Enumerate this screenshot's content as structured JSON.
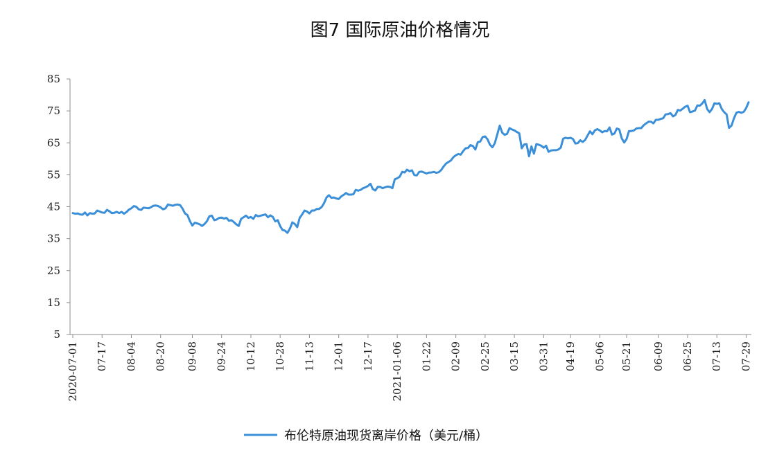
{
  "chart_data": {
    "type": "line",
    "title": "图7 国际原油价格情况",
    "ylim": [
      5,
      85
    ],
    "yticks": [
      85,
      75,
      65,
      55,
      45,
      35,
      25,
      15,
      5
    ],
    "grid": false,
    "legend_position": "bottom",
    "x_tick_labels": [
      "2020-07-01",
      "07-17",
      "08-04",
      "08-20",
      "09-08",
      "09-24",
      "10-12",
      "10-28",
      "11-13",
      "12-01",
      "12-17",
      "2021-01-06",
      "01-22",
      "02-09",
      "02-25",
      "03-15",
      "03-31",
      "04-19",
      "05-06",
      "05-21",
      "06-09",
      "06-25",
      "07-13",
      "07-29"
    ],
    "series": [
      {
        "name": "布伦特原油现货离岸价格（美元/桶）",
        "color": "#3a8fd8",
        "points": [
          [
            "2020-07-01",
            43.0
          ],
          [
            "2020-07-02",
            42.8
          ],
          [
            "2020-07-03",
            42.9
          ],
          [
            "2020-07-06",
            42.6
          ],
          [
            "2020-07-07",
            42.5
          ],
          [
            "2020-07-08",
            43.2
          ],
          [
            "2020-07-09",
            42.3
          ],
          [
            "2020-07-10",
            43.0
          ],
          [
            "2020-07-13",
            42.8
          ],
          [
            "2020-07-14",
            42.9
          ],
          [
            "2020-07-15",
            43.8
          ],
          [
            "2020-07-16",
            43.5
          ],
          [
            "2020-07-17",
            43.2
          ],
          [
            "2020-07-20",
            43.1
          ],
          [
            "2020-07-21",
            44.0
          ],
          [
            "2020-07-22",
            43.6
          ],
          [
            "2020-07-23",
            43.0
          ],
          [
            "2020-07-24",
            43.1
          ],
          [
            "2020-07-27",
            43.4
          ],
          [
            "2020-07-28",
            43.0
          ],
          [
            "2020-07-29",
            43.4
          ],
          [
            "2020-07-30",
            42.8
          ],
          [
            "2020-07-31",
            43.3
          ],
          [
            "2020-08-03",
            44.1
          ],
          [
            "2020-08-04",
            44.5
          ],
          [
            "2020-08-05",
            45.2
          ],
          [
            "2020-08-06",
            45.0
          ],
          [
            "2020-08-07",
            44.2
          ],
          [
            "2020-08-10",
            44.0
          ],
          [
            "2020-08-11",
            44.7
          ],
          [
            "2020-08-12",
            44.6
          ],
          [
            "2020-08-13",
            44.5
          ],
          [
            "2020-08-14",
            44.8
          ],
          [
            "2020-08-17",
            45.3
          ],
          [
            "2020-08-18",
            45.4
          ],
          [
            "2020-08-19",
            45.2
          ],
          [
            "2020-08-20",
            44.8
          ],
          [
            "2020-08-21",
            44.2
          ],
          [
            "2020-08-24",
            44.5
          ],
          [
            "2020-08-25",
            45.7
          ],
          [
            "2020-08-26",
            45.5
          ],
          [
            "2020-08-27",
            45.3
          ],
          [
            "2020-08-28",
            45.6
          ],
          [
            "2020-08-31",
            45.7
          ],
          [
            "2020-09-01",
            45.5
          ],
          [
            "2020-09-02",
            44.4
          ],
          [
            "2020-09-03",
            42.9
          ],
          [
            "2020-09-04",
            42.4
          ],
          [
            "2020-09-07",
            40.5
          ],
          [
            "2020-09-08",
            39.1
          ],
          [
            "2020-09-09",
            40.0
          ],
          [
            "2020-09-10",
            39.8
          ],
          [
            "2020-09-11",
            39.5
          ],
          [
            "2020-09-14",
            39.0
          ],
          [
            "2020-09-15",
            39.6
          ],
          [
            "2020-09-16",
            40.5
          ],
          [
            "2020-09-17",
            42.0
          ],
          [
            "2020-09-18",
            42.2
          ],
          [
            "2020-09-21",
            40.8
          ],
          [
            "2020-09-22",
            41.0
          ],
          [
            "2020-09-23",
            41.5
          ],
          [
            "2020-09-24",
            41.6
          ],
          [
            "2020-09-25",
            41.3
          ],
          [
            "2020-09-28",
            41.5
          ],
          [
            "2020-09-29",
            40.6
          ],
          [
            "2020-09-30",
            40.8
          ],
          [
            "2020-10-01",
            40.2
          ],
          [
            "2020-10-02",
            39.5
          ],
          [
            "2020-10-05",
            39.0
          ],
          [
            "2020-10-06",
            41.2
          ],
          [
            "2020-10-07",
            41.7
          ],
          [
            "2020-10-08",
            42.2
          ],
          [
            "2020-10-09",
            41.5
          ],
          [
            "2020-10-12",
            41.8
          ],
          [
            "2020-10-13",
            41.2
          ],
          [
            "2020-10-14",
            42.4
          ],
          [
            "2020-10-15",
            42.0
          ],
          [
            "2020-10-16",
            42.2
          ],
          [
            "2020-10-19",
            42.4
          ],
          [
            "2020-10-20",
            42.6
          ],
          [
            "2020-10-21",
            41.7
          ],
          [
            "2020-10-22",
            42.3
          ],
          [
            "2020-10-23",
            41.8
          ],
          [
            "2020-10-26",
            40.4
          ],
          [
            "2020-10-27",
            40.8
          ],
          [
            "2020-10-28",
            38.9
          ],
          [
            "2020-10-29",
            37.7
          ],
          [
            "2020-10-30",
            37.5
          ],
          [
            "2020-11-02",
            36.8
          ],
          [
            "2020-11-03",
            38.2
          ],
          [
            "2020-11-04",
            40.1
          ],
          [
            "2020-11-05",
            39.6
          ],
          [
            "2020-11-06",
            38.6
          ],
          [
            "2020-11-09",
            41.5
          ],
          [
            "2020-11-10",
            42.6
          ],
          [
            "2020-11-11",
            43.8
          ],
          [
            "2020-11-12",
            43.5
          ],
          [
            "2020-11-13",
            42.9
          ],
          [
            "2020-11-16",
            43.8
          ],
          [
            "2020-11-17",
            43.8
          ],
          [
            "2020-11-18",
            44.3
          ],
          [
            "2020-11-19",
            44.3
          ],
          [
            "2020-11-20",
            44.9
          ],
          [
            "2020-11-23",
            46.1
          ],
          [
            "2020-11-24",
            47.9
          ],
          [
            "2020-11-25",
            48.6
          ],
          [
            "2020-11-26",
            47.8
          ],
          [
            "2020-11-27",
            47.9
          ],
          [
            "2020-11-30",
            47.6
          ],
          [
            "2020-12-01",
            47.4
          ],
          [
            "2020-12-02",
            48.2
          ],
          [
            "2020-12-03",
            48.7
          ],
          [
            "2020-12-04",
            49.3
          ],
          [
            "2020-12-07",
            48.8
          ],
          [
            "2020-12-08",
            48.8
          ],
          [
            "2020-12-09",
            48.9
          ],
          [
            "2020-12-10",
            50.3
          ],
          [
            "2020-12-11",
            50.0
          ],
          [
            "2020-12-14",
            50.3
          ],
          [
            "2020-12-15",
            50.8
          ],
          [
            "2020-12-16",
            51.1
          ],
          [
            "2020-12-17",
            51.5
          ],
          [
            "2020-12-18",
            52.2
          ],
          [
            "2020-12-21",
            50.5
          ],
          [
            "2020-12-22",
            50.1
          ],
          [
            "2020-12-23",
            51.2
          ],
          [
            "2020-12-24",
            51.2
          ],
          [
            "2020-12-28",
            50.8
          ],
          [
            "2020-12-29",
            51.1
          ],
          [
            "2020-12-30",
            51.3
          ],
          [
            "2020-12-31",
            51.2
          ],
          [
            "2021-01-04",
            50.8
          ],
          [
            "2021-01-05",
            53.6
          ],
          [
            "2021-01-06",
            53.9
          ],
          [
            "2021-01-07",
            54.4
          ],
          [
            "2021-01-08",
            55.9
          ],
          [
            "2021-01-11",
            55.7
          ],
          [
            "2021-01-12",
            56.6
          ],
          [
            "2021-01-13",
            56.1
          ],
          [
            "2021-01-14",
            56.4
          ],
          [
            "2021-01-15",
            54.9
          ],
          [
            "2021-01-18",
            54.8
          ],
          [
            "2021-01-19",
            55.9
          ],
          [
            "2021-01-20",
            56.0
          ],
          [
            "2021-01-21",
            55.7
          ],
          [
            "2021-01-22",
            55.4
          ],
          [
            "2021-01-25",
            55.7
          ],
          [
            "2021-01-26",
            55.7
          ],
          [
            "2021-01-27",
            55.9
          ],
          [
            "2021-01-28",
            55.6
          ],
          [
            "2021-01-29",
            55.8
          ],
          [
            "2021-02-01",
            56.5
          ],
          [
            "2021-02-02",
            57.6
          ],
          [
            "2021-02-03",
            58.5
          ],
          [
            "2021-02-04",
            59.0
          ],
          [
            "2021-02-05",
            59.5
          ],
          [
            "2021-02-08",
            60.5
          ],
          [
            "2021-02-09",
            61.1
          ],
          [
            "2021-02-10",
            61.5
          ],
          [
            "2021-02-11",
            61.3
          ],
          [
            "2021-02-12",
            62.4
          ],
          [
            "2021-02-15",
            63.3
          ],
          [
            "2021-02-16",
            63.4
          ],
          [
            "2021-02-17",
            64.3
          ],
          [
            "2021-02-18",
            64.0
          ],
          [
            "2021-02-19",
            62.9
          ],
          [
            "2021-02-22",
            65.2
          ],
          [
            "2021-02-23",
            65.4
          ],
          [
            "2021-02-24",
            66.8
          ],
          [
            "2021-02-25",
            67.0
          ],
          [
            "2021-02-26",
            66.1
          ],
          [
            "2021-03-01",
            64.4
          ],
          [
            "2021-03-02",
            63.6
          ],
          [
            "2021-03-03",
            64.9
          ],
          [
            "2021-03-04",
            67.7
          ],
          [
            "2021-03-05",
            70.4
          ],
          [
            "2021-03-08",
            68.2
          ],
          [
            "2021-03-09",
            67.5
          ],
          [
            "2021-03-10",
            67.8
          ],
          [
            "2021-03-11",
            69.6
          ],
          [
            "2021-03-12",
            69.2
          ],
          [
            "2021-03-15",
            68.9
          ],
          [
            "2021-03-16",
            68.4
          ],
          [
            "2021-03-17",
            68.0
          ],
          [
            "2021-03-18",
            63.3
          ],
          [
            "2021-03-19",
            64.5
          ],
          [
            "2021-03-22",
            64.6
          ],
          [
            "2021-03-23",
            60.8
          ],
          [
            "2021-03-24",
            63.9
          ],
          [
            "2021-03-25",
            61.6
          ],
          [
            "2021-03-26",
            64.6
          ],
          [
            "2021-03-29",
            64.4
          ],
          [
            "2021-03-30",
            64.1
          ],
          [
            "2021-03-31",
            63.5
          ],
          [
            "2021-04-01",
            64.1
          ],
          [
            "2021-04-06",
            62.2
          ],
          [
            "2021-04-07",
            62.6
          ],
          [
            "2021-04-08",
            62.7
          ],
          [
            "2021-04-09",
            62.7
          ],
          [
            "2021-04-12",
            62.9
          ],
          [
            "2021-04-13",
            63.5
          ],
          [
            "2021-04-14",
            66.3
          ],
          [
            "2021-04-15",
            66.6
          ],
          [
            "2021-04-16",
            66.4
          ],
          [
            "2021-04-19",
            66.6
          ],
          [
            "2021-04-20",
            66.2
          ],
          [
            "2021-04-21",
            64.8
          ],
          [
            "2021-04-22",
            64.9
          ],
          [
            "2021-04-23",
            65.8
          ],
          [
            "2021-04-26",
            65.3
          ],
          [
            "2021-04-27",
            65.9
          ],
          [
            "2021-04-28",
            67.3
          ],
          [
            "2021-04-29",
            68.6
          ],
          [
            "2021-04-30",
            67.7
          ],
          [
            "2021-05-04",
            68.9
          ],
          [
            "2021-05-05",
            69.3
          ],
          [
            "2021-05-06",
            68.9
          ],
          [
            "2021-05-07",
            68.3
          ],
          [
            "2021-05-10",
            68.7
          ],
          [
            "2021-05-11",
            68.6
          ],
          [
            "2021-05-12",
            69.8
          ],
          [
            "2021-05-13",
            67.6
          ],
          [
            "2021-05-14",
            67.9
          ],
          [
            "2021-05-17",
            69.5
          ],
          [
            "2021-05-18",
            69.2
          ],
          [
            "2021-05-19",
            66.4
          ],
          [
            "2021-05-20",
            65.1
          ],
          [
            "2021-05-21",
            66.2
          ],
          [
            "2021-05-24",
            68.7
          ],
          [
            "2021-05-25",
            68.7
          ],
          [
            "2021-05-26",
            68.9
          ],
          [
            "2021-05-27",
            69.5
          ],
          [
            "2021-05-28",
            69.6
          ],
          [
            "2021-05-31",
            69.6
          ],
          [
            "2021-06-01",
            70.5
          ],
          [
            "2021-06-02",
            71.1
          ],
          [
            "2021-06-03",
            71.6
          ],
          [
            "2021-06-04",
            71.6
          ],
          [
            "2021-06-07",
            71.1
          ],
          [
            "2021-06-08",
            72.2
          ],
          [
            "2021-06-09",
            72.2
          ],
          [
            "2021-06-10",
            72.5
          ],
          [
            "2021-06-11",
            72.7
          ],
          [
            "2021-06-14",
            73.9
          ],
          [
            "2021-06-15",
            74.0
          ],
          [
            "2021-06-16",
            74.3
          ],
          [
            "2021-06-17",
            73.3
          ],
          [
            "2021-06-18",
            73.7
          ],
          [
            "2021-06-21",
            75.3
          ],
          [
            "2021-06-22",
            75.1
          ],
          [
            "2021-06-23",
            75.7
          ],
          [
            "2021-06-24",
            76.3
          ],
          [
            "2021-06-25",
            76.6
          ],
          [
            "2021-06-28",
            74.6
          ],
          [
            "2021-06-29",
            74.8
          ],
          [
            "2021-06-30",
            75.1
          ],
          [
            "2021-07-01",
            76.7
          ],
          [
            "2021-07-02",
            76.6
          ],
          [
            "2021-07-05",
            77.3
          ],
          [
            "2021-07-06",
            78.4
          ],
          [
            "2021-07-07",
            75.6
          ],
          [
            "2021-07-08",
            74.6
          ],
          [
            "2021-07-09",
            75.6
          ],
          [
            "2021-07-12",
            77.4
          ],
          [
            "2021-07-13",
            77.2
          ],
          [
            "2021-07-14",
            77.4
          ],
          [
            "2021-07-15",
            75.6
          ],
          [
            "2021-07-16",
            74.6
          ],
          [
            "2021-07-19",
            73.9
          ],
          [
            "2021-07-20",
            69.7
          ],
          [
            "2021-07-21",
            70.4
          ],
          [
            "2021-07-22",
            72.7
          ],
          [
            "2021-07-23",
            74.4
          ],
          [
            "2021-07-26",
            74.7
          ],
          [
            "2021-07-27",
            74.4
          ],
          [
            "2021-07-28",
            74.7
          ],
          [
            "2021-07-29",
            75.9
          ],
          [
            "2021-07-30",
            77.7
          ]
        ]
      }
    ]
  }
}
